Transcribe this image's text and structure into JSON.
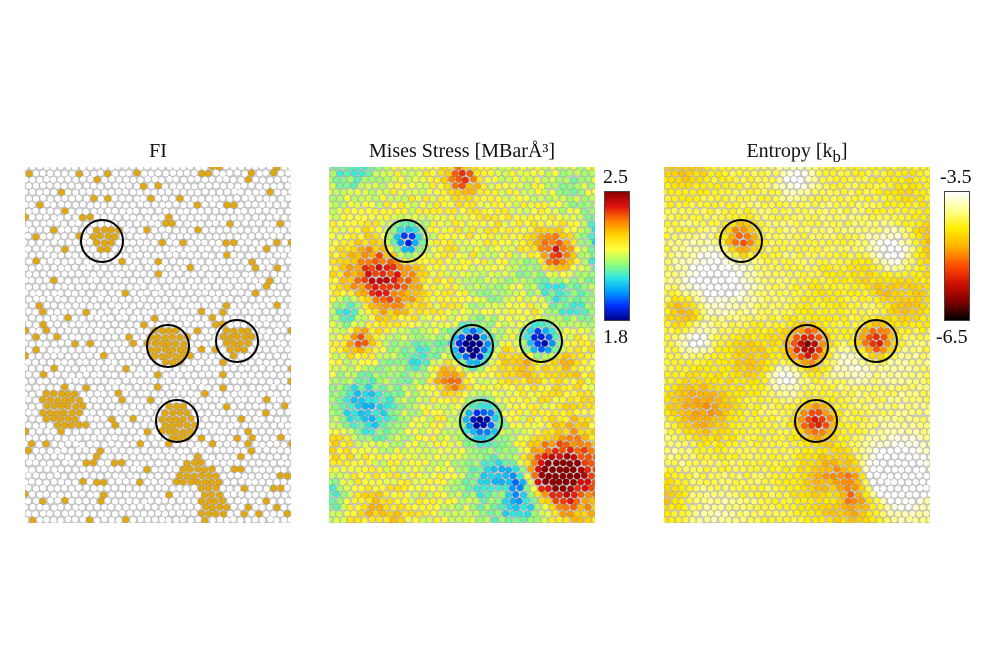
{
  "figure": {
    "panels": [
      {
        "id": "fi",
        "title": "FI",
        "base_color": "#e6e6e6",
        "particle_color": "#ffffff",
        "cluster_color": "#e3a810"
      },
      {
        "id": "stress",
        "title": "Mises Stress [MBarÅ³]"
      },
      {
        "id": "entropy",
        "title": "Entropy [k",
        "title_sub": "b",
        "title_end": "]"
      }
    ],
    "colorbars": [
      {
        "id": "stress",
        "max_label": "2.5",
        "min_label": "1.8",
        "gradient": [
          "#8b0000",
          "#e01010",
          "#ff7a00",
          "#ffd000",
          "#ffff40",
          "#9cff70",
          "#30e8e0",
          "#00a0ff",
          "#0030ff",
          "#00008b"
        ]
      },
      {
        "id": "entropy",
        "max_label": "-3.5",
        "min_label": "-6.5",
        "gradient": [
          "#ffffff",
          "#ffff90",
          "#ffee00",
          "#ffb000",
          "#ff5000",
          "#d01000",
          "#800000",
          "#000000"
        ]
      }
    ],
    "markers": {
      "shape": "circle",
      "count_per_panel": 5,
      "stroke": "#000000"
    }
  }
}
